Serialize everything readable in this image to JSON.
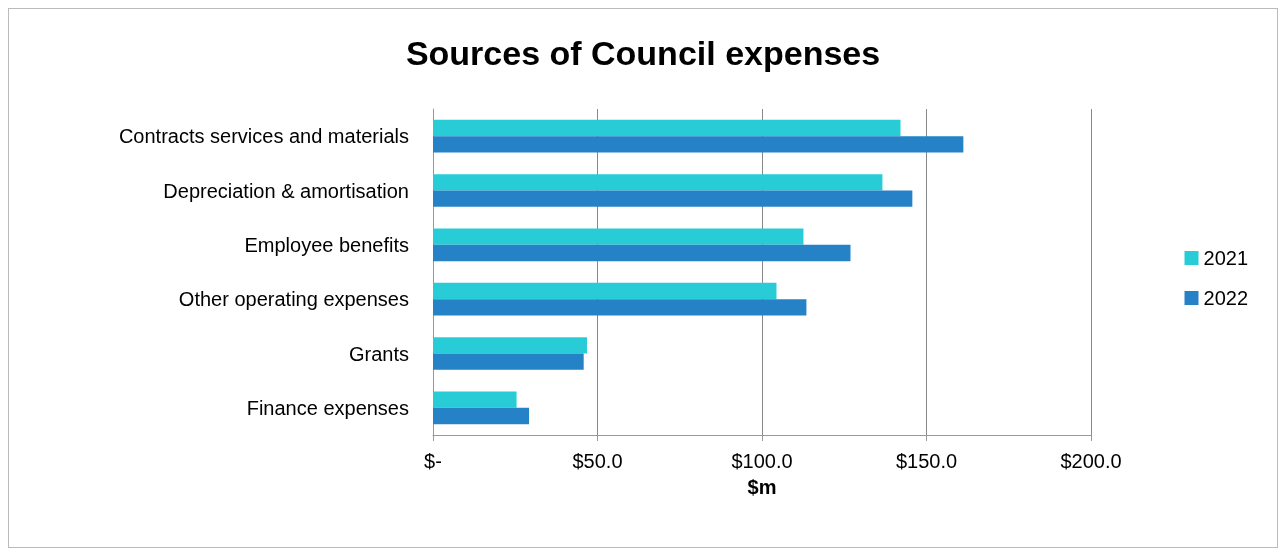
{
  "chart_data": {
    "type": "bar",
    "orientation": "horizontal",
    "title": "Sources of Council expenses",
    "xlabel": "$m",
    "categories": [
      "Contracts services and materials",
      "Depreciation & amortisation",
      "Employee benefits",
      "Other operating expenses",
      "Grants",
      "Finance expenses"
    ],
    "series": [
      {
        "name": "2021",
        "color": "#27ccd6",
        "values": [
          142.1,
          136.6,
          112.6,
          104.4,
          46.8,
          25.4
        ]
      },
      {
        "name": "2022",
        "color": "#2682c6",
        "values": [
          161.2,
          145.7,
          126.9,
          113.5,
          45.8,
          29.2
        ]
      }
    ],
    "xlim": [
      0,
      200
    ],
    "xticks": [
      {
        "value": 0,
        "label": "$-"
      },
      {
        "value": 50,
        "label": "$50.0"
      },
      {
        "value": 100,
        "label": "$100.0"
      },
      {
        "value": 150,
        "label": "$150.0"
      },
      {
        "value": 200,
        "label": "$200.0"
      }
    ],
    "grid": "x",
    "legend": "right"
  }
}
